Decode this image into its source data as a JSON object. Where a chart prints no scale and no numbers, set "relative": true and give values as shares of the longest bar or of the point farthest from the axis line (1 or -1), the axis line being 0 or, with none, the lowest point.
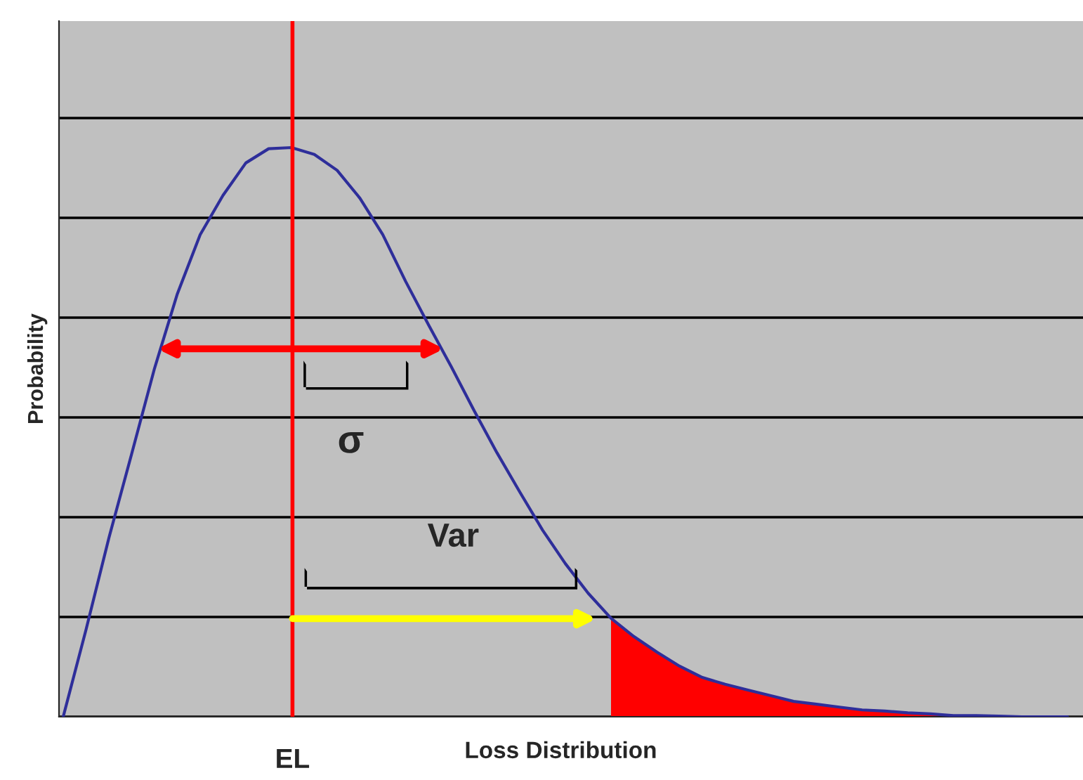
{
  "chart_data": {
    "type": "line",
    "relative": true,
    "xlabel": "Loss Distribution",
    "ylabel": "Probability",
    "categories": [
      null,
      null,
      null,
      null,
      null,
      null,
      null,
      null,
      null,
      null,
      null,
      null,
      null,
      null,
      null,
      null,
      null,
      null,
      null,
      null,
      null,
      null,
      null,
      null,
      null,
      null,
      null,
      null,
      null,
      null,
      null,
      null,
      null,
      null,
      null,
      null,
      null,
      null,
      null,
      null,
      null,
      null,
      null,
      null,
      null
    ],
    "grid": "y",
    "marker": "none",
    "line_style": "solid",
    "series": [
      {
        "color": "#2e2e9a",
        "values": [
          0,
          0.153,
          0.314,
          0.462,
          0.612,
          0.743,
          0.847,
          0.916,
          0.973,
          0.998,
          1.0,
          0.988,
          0.96,
          0.911,
          0.847,
          0.765,
          0.689,
          0.615,
          0.538,
          0.464,
          0.395,
          0.328,
          0.269,
          0.217,
          0.173,
          0.141,
          0.114,
          0.089,
          0.069,
          0.057,
          0.047,
          0.037,
          0.027,
          0.022,
          0.017,
          0.012,
          0.01,
          0.007,
          0.005,
          0.002,
          0.002,
          0.001,
          0,
          0,
          0
        ]
      },
      {
        "type": "area",
        "color": "#ff0000",
        "values": [
          null,
          null,
          null,
          null,
          null,
          null,
          null,
          null,
          null,
          null,
          null,
          null,
          null,
          null,
          null,
          null,
          null,
          null,
          null,
          null,
          null,
          null,
          null,
          null,
          0.173,
          0.141,
          0.114,
          0.089,
          0.069,
          0.057,
          0.047,
          0.037,
          0.027,
          0.022,
          0.017,
          0.012,
          0.01,
          0.007,
          0.005,
          0.002,
          0.002,
          0.001,
          0,
          0,
          0
        ]
      }
    ],
    "annotations": [
      "σ",
      "Var",
      "EL"
    ]
  }
}
